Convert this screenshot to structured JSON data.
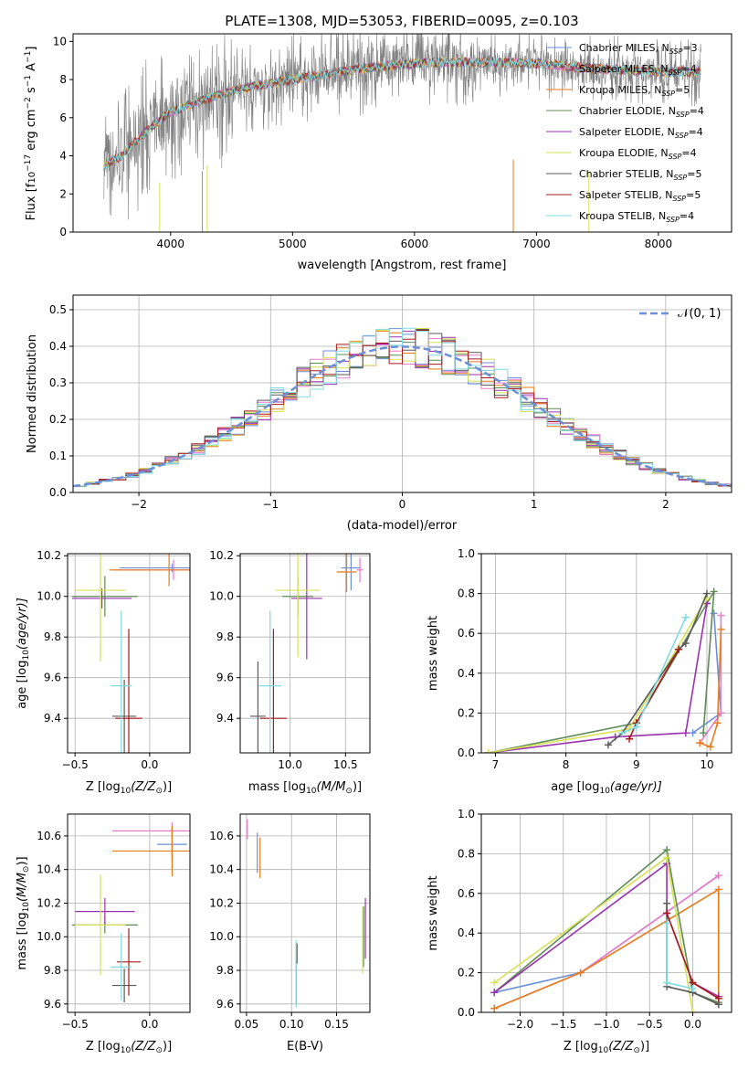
{
  "colors": {
    "Chabrier MILES": "#6b8fd8",
    "Salpeter MILES": "#ea7aca",
    "Kroupa MILES": "#e87b1c",
    "Chabrier ELODIE": "#5e8c55",
    "Salpeter ELODIE": "#9a32b0",
    "Kroupa ELODIE": "#d7e255",
    "Chabrier STELIB": "#5a5a5a",
    "Salpeter STELIB": "#a81b1b",
    "Kroupa STELIB": "#7fdbe0"
  },
  "chart_data": [
    {
      "id": "spectrum",
      "type": "line",
      "title": "PLATE=1308, MJD=53053, FIBERID=0095, z=0.103",
      "xlabel": "wavelength [Angstrom, rest frame]",
      "ylabel": "Flux [f",
      "ylabel_tail": "10",
      "ylabel_tail_exp": "−17",
      "ylabel_units": " erg cm",
      "ylabel_units_exp": "−2",
      "ylabel_s": " s",
      "ylabel_s_exp": "−1",
      "ylabel_a": " A",
      "ylabel_a_exp": "−1",
      "ylabel_end": "]",
      "xlim": [
        3200,
        8600
      ],
      "ylim": [
        0,
        10.4
      ],
      "xticks": [
        4000,
        5000,
        6000,
        7000,
        8000
      ],
      "yticks": [
        0,
        2,
        4,
        6,
        8,
        10
      ],
      "legend_position": "right",
      "legend": [
        {
          "label": "Chabrier MILES, N",
          "sub": "SSP",
          "val": "=3"
        },
        {
          "label": "Salpeter MILES, N",
          "sub": "SSP",
          "val": "=4"
        },
        {
          "label": "Kroupa MILES, N",
          "sub": "SSP",
          "val": "=5"
        },
        {
          "label": "Chabrier ELODIE, N",
          "sub": "SSP",
          "val": "=4"
        },
        {
          "label": "Salpeter ELODIE, N",
          "sub": "SSP",
          "val": "=4"
        },
        {
          "label": "Kroupa ELODIE, N",
          "sub": "SSP",
          "val": "=4"
        },
        {
          "label": "Chabrier STELIB, N",
          "sub": "SSP",
          "val": "=5"
        },
        {
          "label": "Salpeter STELIB, N",
          "sub": "SSP",
          "val": "=5"
        },
        {
          "label": "Kroupa STELIB, N",
          "sub": "SSP",
          "val": "=4"
        }
      ],
      "continuum": [
        [
          3450,
          3.5
        ],
        [
          3600,
          4.0
        ],
        [
          3800,
          5.3
        ],
        [
          4000,
          6.3
        ],
        [
          4200,
          6.8
        ],
        [
          4500,
          7.4
        ],
        [
          4800,
          7.8
        ],
        [
          5000,
          8.0
        ],
        [
          5300,
          8.3
        ],
        [
          5600,
          8.6
        ],
        [
          5900,
          8.8
        ],
        [
          6200,
          8.9
        ],
        [
          6500,
          8.9
        ],
        [
          6800,
          8.9
        ],
        [
          7100,
          8.8
        ],
        [
          7400,
          8.6
        ],
        [
          7700,
          8.5
        ],
        [
          8000,
          8.4
        ],
        [
          8300,
          8.4
        ]
      ]
    },
    {
      "id": "residuals",
      "type": "step",
      "xlabel": "(data-model)/error",
      "ylabel": "Normed distribution",
      "xlim": [
        -2.5,
        2.5
      ],
      "ylim": [
        0,
        0.54
      ],
      "xticks": [
        -2,
        -1,
        0,
        1,
        2
      ],
      "yticks": [
        0.0,
        0.1,
        0.2,
        0.3,
        0.4,
        0.5
      ],
      "grid": true,
      "legend_position": "top-right",
      "legend": "𝒩(0, 1)",
      "gaussian": {
        "mean": 0,
        "sigma": 1
      }
    },
    {
      "id": "age_vs_Z",
      "type": "errorbar",
      "xlabel": "Z [log",
      "xlabel_sub": "10",
      "xlabel_mid": "(Z/Z",
      "xlabel_sun": "⊙",
      "xlabel_end": ")]",
      "ylabel": "age  [log",
      "ylabel_sub": "10",
      "ylabel_mid": "(age/yr)]",
      "xlim": [
        -0.55,
        0.27
      ],
      "ylim": [
        9.23,
        10.21
      ],
      "xticks": [
        -0.5,
        0.0
      ],
      "yticks": [
        9.4,
        9.6,
        9.8,
        10.0,
        10.2
      ],
      "grid": true,
      "points": [
        {
          "s": "Chabrier MILES",
          "x": 0.15,
          "y": 10.14,
          "ex": 0.35,
          "ey": 0.02
        },
        {
          "s": "Salpeter MILES",
          "x": 0.16,
          "y": 10.13,
          "ex": 0.4,
          "ey": 0.05
        },
        {
          "s": "Kroupa MILES",
          "x": 0.13,
          "y": 10.13,
          "ex": 0.4,
          "ey": 0.08
        },
        {
          "s": "Chabrier ELODIE",
          "x": -0.3,
          "y": 10.0,
          "ex": 0.22,
          "ey": 0.1
        },
        {
          "s": "Salpeter ELODIE",
          "x": -0.32,
          "y": 9.99,
          "ex": 0.2,
          "ey": 0.05
        },
        {
          "s": "Kroupa ELODIE",
          "x": -0.33,
          "y": 10.03,
          "ex": 0.17,
          "ey": 0.35
        },
        {
          "s": "Chabrier STELIB",
          "x": -0.17,
          "y": 9.41,
          "ex": 0.08,
          "ey": 0.18
        },
        {
          "s": "Salpeter STELIB",
          "x": -0.14,
          "y": 9.4,
          "ex": 0.09,
          "ey": 0.44
        },
        {
          "s": "Kroupa STELIB",
          "x": -0.19,
          "y": 9.56,
          "ex": 0.07,
          "ey": 0.37
        }
      ]
    },
    {
      "id": "age_vs_mass",
      "type": "errorbar",
      "xlabel": "mass [log",
      "xlabel_sub": "10",
      "xlabel_mid": "(M/M",
      "xlabel_sun": "⊙",
      "xlabel_end": ")]",
      "xlim": [
        9.55,
        10.72
      ],
      "ylim": [
        9.23,
        10.21
      ],
      "xticks": [
        10.0,
        10.5
      ],
      "yticks": [
        9.4,
        9.6,
        9.8,
        10.0,
        10.2
      ],
      "grid": true,
      "points": [
        {
          "s": "Chabrier MILES",
          "x": 10.55,
          "y": 10.14,
          "ex": 0.09,
          "ey": 0.11
        },
        {
          "s": "Salpeter MILES",
          "x": 10.63,
          "y": 10.13,
          "ex": 0.03,
          "ey": 0.06
        },
        {
          "s": "Kroupa MILES",
          "x": 10.51,
          "y": 10.12,
          "ex": 0.09,
          "ey": 0.1
        },
        {
          "s": "Chabrier ELODIE",
          "x": 10.07,
          "y": 10.0,
          "ex": 0.14,
          "ey": 0.1
        },
        {
          "s": "Salpeter ELODIE",
          "x": 10.15,
          "y": 9.99,
          "ex": 0.14,
          "ey": 0.3
        },
        {
          "s": "Kroupa ELODIE",
          "x": 10.07,
          "y": 10.03,
          "ex": 0.2,
          "ey": 0.33
        },
        {
          "s": "Chabrier STELIB",
          "x": 9.71,
          "y": 9.41,
          "ex": 0.07,
          "ey": 0.27
        },
        {
          "s": "Salpeter STELIB",
          "x": 9.85,
          "y": 9.4,
          "ex": 0.12,
          "ey": 0.44
        },
        {
          "s": "Kroupa STELIB",
          "x": 9.82,
          "y": 9.56,
          "ex": 0.1,
          "ey": 0.37
        }
      ]
    },
    {
      "id": "weight_vs_age",
      "type": "line",
      "xlabel": "age  [log",
      "xlabel_sub": "10",
      "xlabel_mid": "(age/yr)]",
      "ylabel": "mass weight",
      "xlim": [
        6.8,
        10.35
      ],
      "ylim": [
        0,
        1
      ],
      "xticks": [
        7,
        8,
        9,
        10
      ],
      "yticks": [
        0.0,
        0.2,
        0.4,
        0.6,
        0.8,
        1.0
      ],
      "grid": true,
      "series": [
        {
          "s": "Chabrier MILES",
          "pts": [
            [
              9.8,
              0.1
            ],
            [
              10.2,
              0.2
            ],
            [
              10.1,
              0.7
            ]
          ]
        },
        {
          "s": "Salpeter MILES",
          "pts": [
            [
              9.9,
              0.05
            ],
            [
              10.2,
              0.2
            ],
            [
              10.2,
              0.69
            ]
          ]
        },
        {
          "s": "Kroupa MILES",
          "pts": [
            [
              9.9,
              0.05
            ],
            [
              10.05,
              0.03
            ],
            [
              10.15,
              0.15
            ],
            [
              10.2,
              0.62
            ]
          ]
        },
        {
          "s": "Chabrier ELODIE",
          "pts": [
            [
              6.9,
              0.0
            ],
            [
              9.0,
              0.15
            ],
            [
              10.0,
              0.75
            ],
            [
              10.1,
              0.81
            ],
            [
              9.95,
              0.1
            ]
          ]
        },
        {
          "s": "Salpeter ELODIE",
          "pts": [
            [
              6.9,
              0.0
            ],
            [
              8.7,
              0.08
            ],
            [
              9.7,
              0.1
            ],
            [
              10.0,
              0.75
            ]
          ]
        },
        {
          "s": "Kroupa ELODIE",
          "pts": [
            [
              6.9,
              0.0
            ],
            [
              8.9,
              0.12
            ],
            [
              10.0,
              0.78
            ]
          ]
        },
        {
          "s": "Chabrier STELIB",
          "pts": [
            [
              8.6,
              0.04
            ],
            [
              8.8,
              0.1
            ],
            [
              9.6,
              0.52
            ],
            [
              9.7,
              0.55
            ],
            [
              10.0,
              0.8
            ]
          ]
        },
        {
          "s": "Salpeter STELIB",
          "pts": [
            [
              8.9,
              0.07
            ],
            [
              9.0,
              0.15
            ],
            [
              9.6,
              0.52
            ]
          ]
        },
        {
          "s": "Kroupa STELIB",
          "pts": [
            [
              8.8,
              0.1
            ],
            [
              9.0,
              0.13
            ],
            [
              9.7,
              0.68
            ]
          ]
        }
      ]
    },
    {
      "id": "mass_vs_Z",
      "type": "errorbar",
      "xlabel": "Z [log",
      "xlabel_sub": "10",
      "xlabel_mid": "(Z/Z",
      "xlabel_sun": "⊙",
      "xlabel_end": ")]",
      "ylabel": "mass [log",
      "ylabel_sub": "10",
      "ylabel_mid": "(M/M",
      "ylabel_sun": "⊙",
      "ylabel_end": ")]",
      "xlim": [
        -0.55,
        0.27
      ],
      "ylim": [
        9.55,
        10.73
      ],
      "xticks": [
        -0.5,
        0.0
      ],
      "yticks": [
        9.6,
        9.8,
        10.0,
        10.2,
        10.4,
        10.6
      ],
      "grid": true,
      "points": [
        {
          "s": "Chabrier MILES",
          "x": 0.15,
          "y": 10.55,
          "ex": 0.1,
          "ey": 0.1
        },
        {
          "s": "Salpeter MILES",
          "x": 0.15,
          "y": 10.63,
          "ex": 0.4,
          "ey": 0.05
        },
        {
          "s": "Kroupa MILES",
          "x": 0.15,
          "y": 10.51,
          "ex": 0.4,
          "ey": 0.15
        },
        {
          "s": "Chabrier ELODIE",
          "x": -0.3,
          "y": 10.07,
          "ex": 0.22,
          "ey": 0.05
        },
        {
          "s": "Salpeter ELODIE",
          "x": -0.3,
          "y": 10.15,
          "ex": 0.2,
          "ey": 0.08
        },
        {
          "s": "Kroupa ELODIE",
          "x": -0.33,
          "y": 10.07,
          "ex": 0.17,
          "ey": 0.3
        },
        {
          "s": "Chabrier STELIB",
          "x": -0.17,
          "y": 9.71,
          "ex": 0.08,
          "ey": 0.1
        },
        {
          "s": "Salpeter STELIB",
          "x": -0.14,
          "y": 9.85,
          "ex": 0.08,
          "ey": 0.2
        },
        {
          "s": "Kroupa STELIB",
          "x": -0.19,
          "y": 9.82,
          "ex": 0.07,
          "ey": 0.2
        }
      ]
    },
    {
      "id": "mass_vs_ebv",
      "type": "errorbar",
      "xlabel": "E(B-V)",
      "xlim": [
        0.043,
        0.187
      ],
      "ylim": [
        9.55,
        10.73
      ],
      "xticks": [
        0.05,
        0.1,
        0.15
      ],
      "yticks": [
        9.6,
        9.8,
        10.0,
        10.2,
        10.4,
        10.6
      ],
      "grid": true,
      "points": [
        {
          "s": "Chabrier MILES",
          "x": 0.062,
          "y": 10.5,
          "ex": 0.0,
          "ey": 0.12
        },
        {
          "s": "Salpeter MILES",
          "x": 0.051,
          "y": 10.64,
          "ex": 0.0,
          "ey": 0.06
        },
        {
          "s": "Kroupa MILES",
          "x": 0.065,
          "y": 10.47,
          "ex": 0.0,
          "ey": 0.12
        },
        {
          "s": "Chabrier ELODIE",
          "x": 0.18,
          "y": 10.0,
          "ex": 0.0,
          "ey": 0.18
        },
        {
          "s": "Salpeter ELODIE",
          "x": 0.182,
          "y": 10.05,
          "ex": 0.0,
          "ey": 0.18
        },
        {
          "s": "Kroupa ELODIE",
          "x": 0.179,
          "y": 9.98,
          "ex": 0.0,
          "ey": 0.2
        },
        {
          "s": "Chabrier STELIB",
          "x": 0.105,
          "y": 9.72,
          "ex": 0.0,
          "ey": 0.12
        },
        {
          "s": "Salpeter STELIB",
          "x": 0.106,
          "y": 9.9,
          "ex": 0.0,
          "ey": 0.06
        },
        {
          "s": "Kroupa STELIB",
          "x": 0.105,
          "y": 9.78,
          "ex": 0.0,
          "ey": 0.2
        }
      ]
    },
    {
      "id": "weight_vs_Z",
      "type": "line",
      "xlabel": "Z [log",
      "xlabel_sub": "10",
      "xlabel_mid": "(Z/Z",
      "xlabel_sun": "⊙",
      "xlabel_end": ")]",
      "ylabel": "mass weight",
      "xlim": [
        -2.45,
        0.45
      ],
      "ylim": [
        0,
        1
      ],
      "xticks": [
        -2.0,
        -1.5,
        -1.0,
        -0.5,
        0.0
      ],
      "yticks": [
        0.0,
        0.2,
        0.4,
        0.6,
        0.8,
        1.0
      ],
      "grid": true,
      "series": [
        {
          "s": "Chabrier MILES",
          "pts": [
            [
              -2.3,
              0.1
            ],
            [
              -1.3,
              0.2
            ],
            [
              0.3,
              0.69
            ]
          ]
        },
        {
          "s": "Salpeter MILES",
          "pts": [
            [
              -2.3,
              0.02
            ],
            [
              -1.3,
              0.2
            ],
            [
              0.3,
              0.69
            ]
          ]
        },
        {
          "s": "Kroupa MILES",
          "pts": [
            [
              -2.3,
              0.02
            ],
            [
              -1.3,
              0.2
            ],
            [
              0.3,
              0.62
            ],
            [
              0.3,
              0.04
            ]
          ]
        },
        {
          "s": "Chabrier ELODIE",
          "pts": [
            [
              -2.3,
              0.1
            ],
            [
              -0.3,
              0.82
            ],
            [
              0.0,
              0.1
            ],
            [
              0.3,
              0.05
            ]
          ]
        },
        {
          "s": "Salpeter ELODIE",
          "pts": [
            [
              -2.3,
              0.1
            ],
            [
              -0.3,
              0.75
            ],
            [
              -0.3,
              0.5
            ],
            [
              0.0,
              0.15
            ],
            [
              0.3,
              0.08
            ]
          ]
        },
        {
          "s": "Kroupa ELODIE",
          "pts": [
            [
              -2.3,
              0.15
            ],
            [
              -0.3,
              0.78
            ],
            [
              0.0,
              0.0
            ]
          ]
        },
        {
          "s": "Chabrier STELIB",
          "pts": [
            [
              -0.3,
              0.55
            ],
            [
              -0.3,
              0.13
            ],
            [
              0.0,
              0.1
            ],
            [
              0.3,
              0.04
            ]
          ]
        },
        {
          "s": "Salpeter STELIB",
          "pts": [
            [
              -0.3,
              0.5
            ],
            [
              0.0,
              0.15
            ],
            [
              0.3,
              0.07
            ]
          ]
        },
        {
          "s": "Kroupa STELIB",
          "pts": [
            [
              -0.3,
              0.45
            ],
            [
              -0.3,
              0.15
            ],
            [
              0.0,
              0.12
            ]
          ]
        }
      ]
    }
  ]
}
